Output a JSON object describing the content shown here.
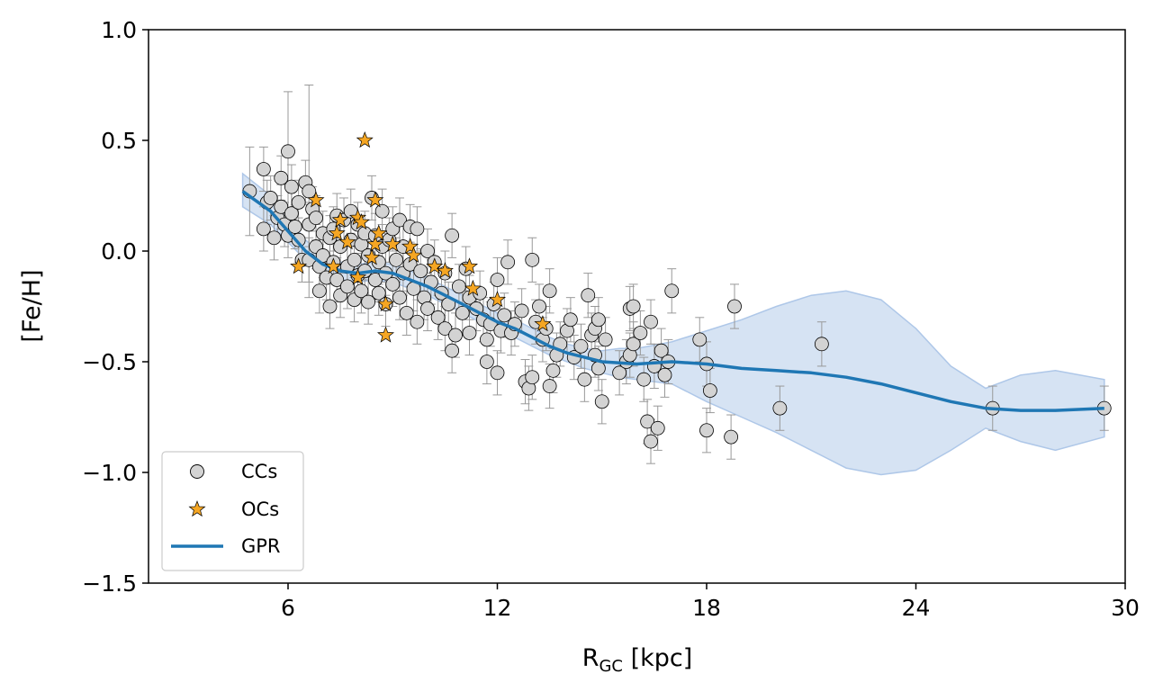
{
  "chart_data": {
    "type": "scatter",
    "xlabel_main": "R",
    "xlabel_sub": "GC",
    "xlabel_unit": " [kpc]",
    "ylabel": "[Fe/H]",
    "xlim": [
      2,
      30
    ],
    "ylim": [
      -1.5,
      1.0
    ],
    "xticks": [
      6,
      12,
      18,
      24,
      30
    ],
    "xtick_labels": [
      "6",
      "12",
      "18",
      "24",
      "30"
    ],
    "yticks": [
      -1.5,
      -1.0,
      -0.5,
      0.0,
      0.5,
      1.0
    ],
    "ytick_labels": [
      "−1.5",
      "−1.0",
      "−0.5",
      "0.0",
      "0.5",
      "1.0"
    ],
    "grid": false,
    "legend_position": "lower-left",
    "colors": {
      "cc_fill": "#d3d3d3",
      "oc_fill": "#f5a623",
      "gpr_line": "#1f77b4",
      "band_fill": "#aec7e8",
      "errorbar": "#999999"
    },
    "series": [
      {
        "name": "CCs",
        "kind": "circle",
        "points": [
          [
            4.9,
            0.27,
            0.2
          ],
          [
            5.3,
            0.37,
            0.1
          ],
          [
            5.4,
            0.22,
            0.1
          ],
          [
            5.5,
            0.24,
            0.1
          ],
          [
            5.6,
            0.06,
            0.1
          ],
          [
            5.3,
            0.1,
            0.1
          ],
          [
            5.7,
            0.15,
            0.1
          ],
          [
            5.8,
            0.2,
            0.1
          ],
          [
            5.9,
            0.12,
            0.1
          ],
          [
            6.0,
            0.07,
            0.1
          ],
          [
            5.8,
            0.33,
            0.1
          ],
          [
            6.0,
            0.45,
            0.27
          ],
          [
            6.1,
            0.29,
            0.1
          ],
          [
            6.1,
            0.17,
            0.1
          ],
          [
            6.2,
            0.11,
            0.1
          ],
          [
            6.3,
            0.05,
            0.1
          ],
          [
            6.4,
            -0.04,
            0.1
          ],
          [
            6.3,
            0.22,
            0.1
          ],
          [
            6.5,
            0.31,
            0.1
          ],
          [
            6.6,
            0.27,
            0.48
          ],
          [
            6.6,
            0.12,
            0.1
          ],
          [
            6.6,
            -0.04,
            0.1
          ],
          [
            6.7,
            0.19,
            0.1
          ],
          [
            6.8,
            0.15,
            0.1
          ],
          [
            6.8,
            0.02,
            0.1
          ],
          [
            6.9,
            -0.07,
            0.1
          ],
          [
            6.9,
            -0.18,
            0.1
          ],
          [
            7.0,
            0.08,
            0.1
          ],
          [
            7.0,
            -0.02,
            0.1
          ],
          [
            7.1,
            -0.12,
            0.1
          ],
          [
            7.2,
            -0.25,
            0.1
          ],
          [
            7.2,
            0.06,
            0.1
          ],
          [
            7.3,
            0.1,
            0.1
          ],
          [
            7.3,
            -0.05,
            0.1
          ],
          [
            7.4,
            0.16,
            0.1
          ],
          [
            7.4,
            -0.13,
            0.1
          ],
          [
            7.5,
            0.02,
            0.1
          ],
          [
            7.5,
            -0.2,
            0.1
          ],
          [
            7.6,
            0.14,
            0.1
          ],
          [
            7.7,
            -0.07,
            0.1
          ],
          [
            7.7,
            -0.16,
            0.1
          ],
          [
            7.8,
            0.05,
            0.1
          ],
          [
            7.8,
            0.18,
            0.1
          ],
          [
            7.9,
            -0.04,
            0.1
          ],
          [
            7.9,
            -0.22,
            0.1
          ],
          [
            8.0,
            0.12,
            0.1
          ],
          [
            8.0,
            -0.11,
            0.1
          ],
          [
            8.1,
            0.03,
            0.1
          ],
          [
            8.1,
            -0.18,
            0.1
          ],
          [
            8.2,
            -0.09,
            0.1
          ],
          [
            8.2,
            0.08,
            0.1
          ],
          [
            8.3,
            -0.02,
            0.1
          ],
          [
            8.3,
            -0.23,
            0.1
          ],
          [
            8.4,
            0.24,
            0.1
          ],
          [
            8.5,
            -0.13,
            0.1
          ],
          [
            8.5,
            0.07,
            0.1
          ],
          [
            8.6,
            -0.05,
            0.1
          ],
          [
            8.6,
            -0.19,
            0.1
          ],
          [
            8.7,
            0.18,
            0.1
          ],
          [
            8.7,
            0.02,
            0.1
          ],
          [
            8.8,
            -0.1,
            0.1
          ],
          [
            8.8,
            -0.24,
            0.1
          ],
          [
            8.9,
            0.05,
            0.1
          ],
          [
            9.0,
            -0.15,
            0.1
          ],
          [
            9.0,
            0.1,
            0.1
          ],
          [
            9.1,
            -0.04,
            0.1
          ],
          [
            9.2,
            -0.21,
            0.1
          ],
          [
            9.2,
            0.14,
            0.1
          ],
          [
            9.3,
            -0.1,
            0.1
          ],
          [
            9.3,
            0.02,
            0.1
          ],
          [
            9.4,
            -0.28,
            0.1
          ],
          [
            9.5,
            -0.06,
            0.1
          ],
          [
            9.5,
            0.11,
            0.1
          ],
          [
            9.6,
            -0.17,
            0.1
          ],
          [
            9.7,
            0.1,
            0.1
          ],
          [
            9.7,
            -0.32,
            0.1
          ],
          [
            9.8,
            -0.09,
            0.1
          ],
          [
            9.9,
            -0.21,
            0.1
          ],
          [
            10.0,
            0.0,
            0.1
          ],
          [
            10.0,
            -0.26,
            0.1
          ],
          [
            10.1,
            -0.14,
            0.1
          ],
          [
            10.2,
            -0.05,
            0.1
          ],
          [
            10.3,
            -0.3,
            0.1
          ],
          [
            10.4,
            -0.19,
            0.1
          ],
          [
            10.5,
            -0.35,
            0.1
          ],
          [
            10.5,
            -0.1,
            0.1
          ],
          [
            10.6,
            -0.24,
            0.1
          ],
          [
            10.7,
            0.07,
            0.1
          ],
          [
            10.7,
            -0.45,
            0.1
          ],
          [
            10.8,
            -0.38,
            0.1
          ],
          [
            10.9,
            -0.16,
            0.1
          ],
          [
            11.0,
            -0.28,
            0.1
          ],
          [
            11.1,
            -0.08,
            0.1
          ],
          [
            11.2,
            -0.21,
            0.1
          ],
          [
            11.2,
            -0.37,
            0.1
          ],
          [
            11.4,
            -0.26,
            0.1
          ],
          [
            11.5,
            -0.19,
            0.1
          ],
          [
            11.6,
            -0.31,
            0.1
          ],
          [
            11.7,
            -0.4,
            0.1
          ],
          [
            11.7,
            -0.5,
            0.1
          ],
          [
            11.8,
            -0.33,
            0.1
          ],
          [
            11.9,
            -0.24,
            0.1
          ],
          [
            12.0,
            -0.13,
            0.1
          ],
          [
            12.0,
            -0.55,
            0.1
          ],
          [
            12.1,
            -0.36,
            0.1
          ],
          [
            12.2,
            -0.29,
            0.1
          ],
          [
            12.3,
            -0.05,
            0.1
          ],
          [
            12.4,
            -0.37,
            0.1
          ],
          [
            12.5,
            -0.33,
            0.1
          ],
          [
            12.7,
            -0.27,
            0.1
          ],
          [
            12.8,
            -0.59,
            0.1
          ],
          [
            12.9,
            -0.62,
            0.1
          ],
          [
            13.0,
            -0.04,
            0.1
          ],
          [
            13.0,
            -0.57,
            0.1
          ],
          [
            13.1,
            -0.32,
            0.1
          ],
          [
            13.2,
            -0.25,
            0.1
          ],
          [
            13.3,
            -0.4,
            0.1
          ],
          [
            13.4,
            -0.35,
            0.1
          ],
          [
            13.5,
            -0.18,
            0.1
          ],
          [
            13.5,
            -0.61,
            0.1
          ],
          [
            13.6,
            -0.54,
            0.1
          ],
          [
            13.7,
            -0.47,
            0.1
          ],
          [
            13.8,
            -0.42,
            0.1
          ],
          [
            14.0,
            -0.36,
            0.1
          ],
          [
            14.1,
            -0.31,
            0.1
          ],
          [
            14.2,
            -0.48,
            0.1
          ],
          [
            14.4,
            -0.43,
            0.1
          ],
          [
            14.5,
            -0.58,
            0.1
          ],
          [
            14.6,
            -0.2,
            0.1
          ],
          [
            14.7,
            -0.38,
            0.1
          ],
          [
            14.8,
            -0.47,
            0.1
          ],
          [
            14.8,
            -0.35,
            0.1
          ],
          [
            14.9,
            -0.53,
            0.1
          ],
          [
            14.9,
            -0.31,
            0.1
          ],
          [
            15.0,
            -0.68,
            0.1
          ],
          [
            15.1,
            -0.4,
            0.1
          ],
          [
            15.5,
            -0.55,
            0.1
          ],
          [
            15.7,
            -0.5,
            0.1
          ],
          [
            15.8,
            -0.47,
            0.1
          ],
          [
            15.8,
            -0.26,
            0.1
          ],
          [
            15.9,
            -0.25,
            0.1
          ],
          [
            15.9,
            -0.42,
            0.1
          ],
          [
            16.1,
            -0.37,
            0.1
          ],
          [
            16.2,
            -0.58,
            0.1
          ],
          [
            16.3,
            -0.77,
            0.1
          ],
          [
            16.4,
            -0.86,
            0.1
          ],
          [
            16.4,
            -0.32,
            0.1
          ],
          [
            16.5,
            -0.52,
            0.1
          ],
          [
            16.6,
            -0.8,
            0.1
          ],
          [
            16.7,
            -0.45,
            0.1
          ],
          [
            16.8,
            -0.56,
            0.1
          ],
          [
            16.9,
            -0.5,
            0.1
          ],
          [
            17.0,
            -0.18,
            0.1
          ],
          [
            17.8,
            -0.4,
            0.1
          ],
          [
            18.0,
            -0.81,
            0.1
          ],
          [
            18.0,
            -0.51,
            0.1
          ],
          [
            18.1,
            -0.63,
            0.1
          ],
          [
            18.7,
            -0.84,
            0.1
          ],
          [
            18.8,
            -0.25,
            0.1
          ],
          [
            20.1,
            -0.71,
            0.1
          ],
          [
            21.3,
            -0.42,
            0.1
          ],
          [
            26.2,
            -0.71,
            0.1
          ],
          [
            29.4,
            -0.71,
            0.1
          ]
        ]
      },
      {
        "name": "OCs",
        "kind": "star",
        "points": [
          [
            6.3,
            -0.07
          ],
          [
            6.8,
            0.23
          ],
          [
            7.4,
            0.08
          ],
          [
            7.5,
            0.14
          ],
          [
            7.7,
            0.04
          ],
          [
            8.0,
            0.15
          ],
          [
            8.1,
            0.13
          ],
          [
            8.2,
            0.5
          ],
          [
            8.5,
            0.23
          ],
          [
            8.5,
            0.03
          ],
          [
            8.6,
            0.08
          ],
          [
            8.8,
            -0.24
          ],
          [
            8.8,
            -0.38
          ],
          [
            9.0,
            0.03
          ],
          [
            9.5,
            0.02
          ],
          [
            9.6,
            -0.02
          ],
          [
            10.2,
            -0.07
          ],
          [
            10.5,
            -0.09
          ],
          [
            11.2,
            -0.07
          ],
          [
            11.3,
            -0.17
          ],
          [
            12.0,
            -0.22
          ],
          [
            8.4,
            -0.03
          ],
          [
            8.0,
            -0.12
          ],
          [
            13.3,
            -0.33
          ],
          [
            7.3,
            -0.07
          ]
        ]
      },
      {
        "name": "GPR",
        "kind": "line",
        "x": [
          4.7,
          5.5,
          6.0,
          6.5,
          7.0,
          7.5,
          8.0,
          8.5,
          9.0,
          9.5,
          10.0,
          10.5,
          11.0,
          11.5,
          12.0,
          12.5,
          13.0,
          13.5,
          14.0,
          14.5,
          15.0,
          15.5,
          16.0,
          17.0,
          18.0,
          19.0,
          20.0,
          21.0,
          22.0,
          23.0,
          24.0,
          25.0,
          26.0,
          27.0,
          28.0,
          29.4
        ],
        "y": [
          0.27,
          0.18,
          0.09,
          0.0,
          -0.06,
          -0.09,
          -0.1,
          -0.09,
          -0.1,
          -0.13,
          -0.16,
          -0.2,
          -0.24,
          -0.28,
          -0.32,
          -0.35,
          -0.39,
          -0.43,
          -0.46,
          -0.48,
          -0.5,
          -0.505,
          -0.51,
          -0.5,
          -0.51,
          -0.53,
          -0.54,
          -0.55,
          -0.57,
          -0.6,
          -0.64,
          -0.68,
          -0.71,
          -0.72,
          -0.72,
          -0.71
        ],
        "lower": [
          0.2,
          0.12,
          0.04,
          -0.04,
          -0.1,
          -0.13,
          -0.14,
          -0.13,
          -0.14,
          -0.17,
          -0.2,
          -0.24,
          -0.28,
          -0.32,
          -0.36,
          -0.39,
          -0.43,
          -0.47,
          -0.5,
          -0.53,
          -0.55,
          -0.57,
          -0.58,
          -0.6,
          -0.68,
          -0.75,
          -0.82,
          -0.9,
          -0.98,
          -1.01,
          -0.99,
          -0.9,
          -0.8,
          -0.86,
          -0.9,
          -0.84
        ],
        "upper": [
          0.35,
          0.25,
          0.15,
          0.05,
          -0.02,
          -0.05,
          -0.06,
          -0.05,
          -0.06,
          -0.09,
          -0.12,
          -0.16,
          -0.2,
          -0.24,
          -0.28,
          -0.31,
          -0.35,
          -0.39,
          -0.42,
          -0.44,
          -0.45,
          -0.44,
          -0.44,
          -0.41,
          -0.36,
          -0.31,
          -0.25,
          -0.2,
          -0.18,
          -0.22,
          -0.35,
          -0.52,
          -0.62,
          -0.56,
          -0.54,
          -0.58
        ]
      }
    ]
  }
}
